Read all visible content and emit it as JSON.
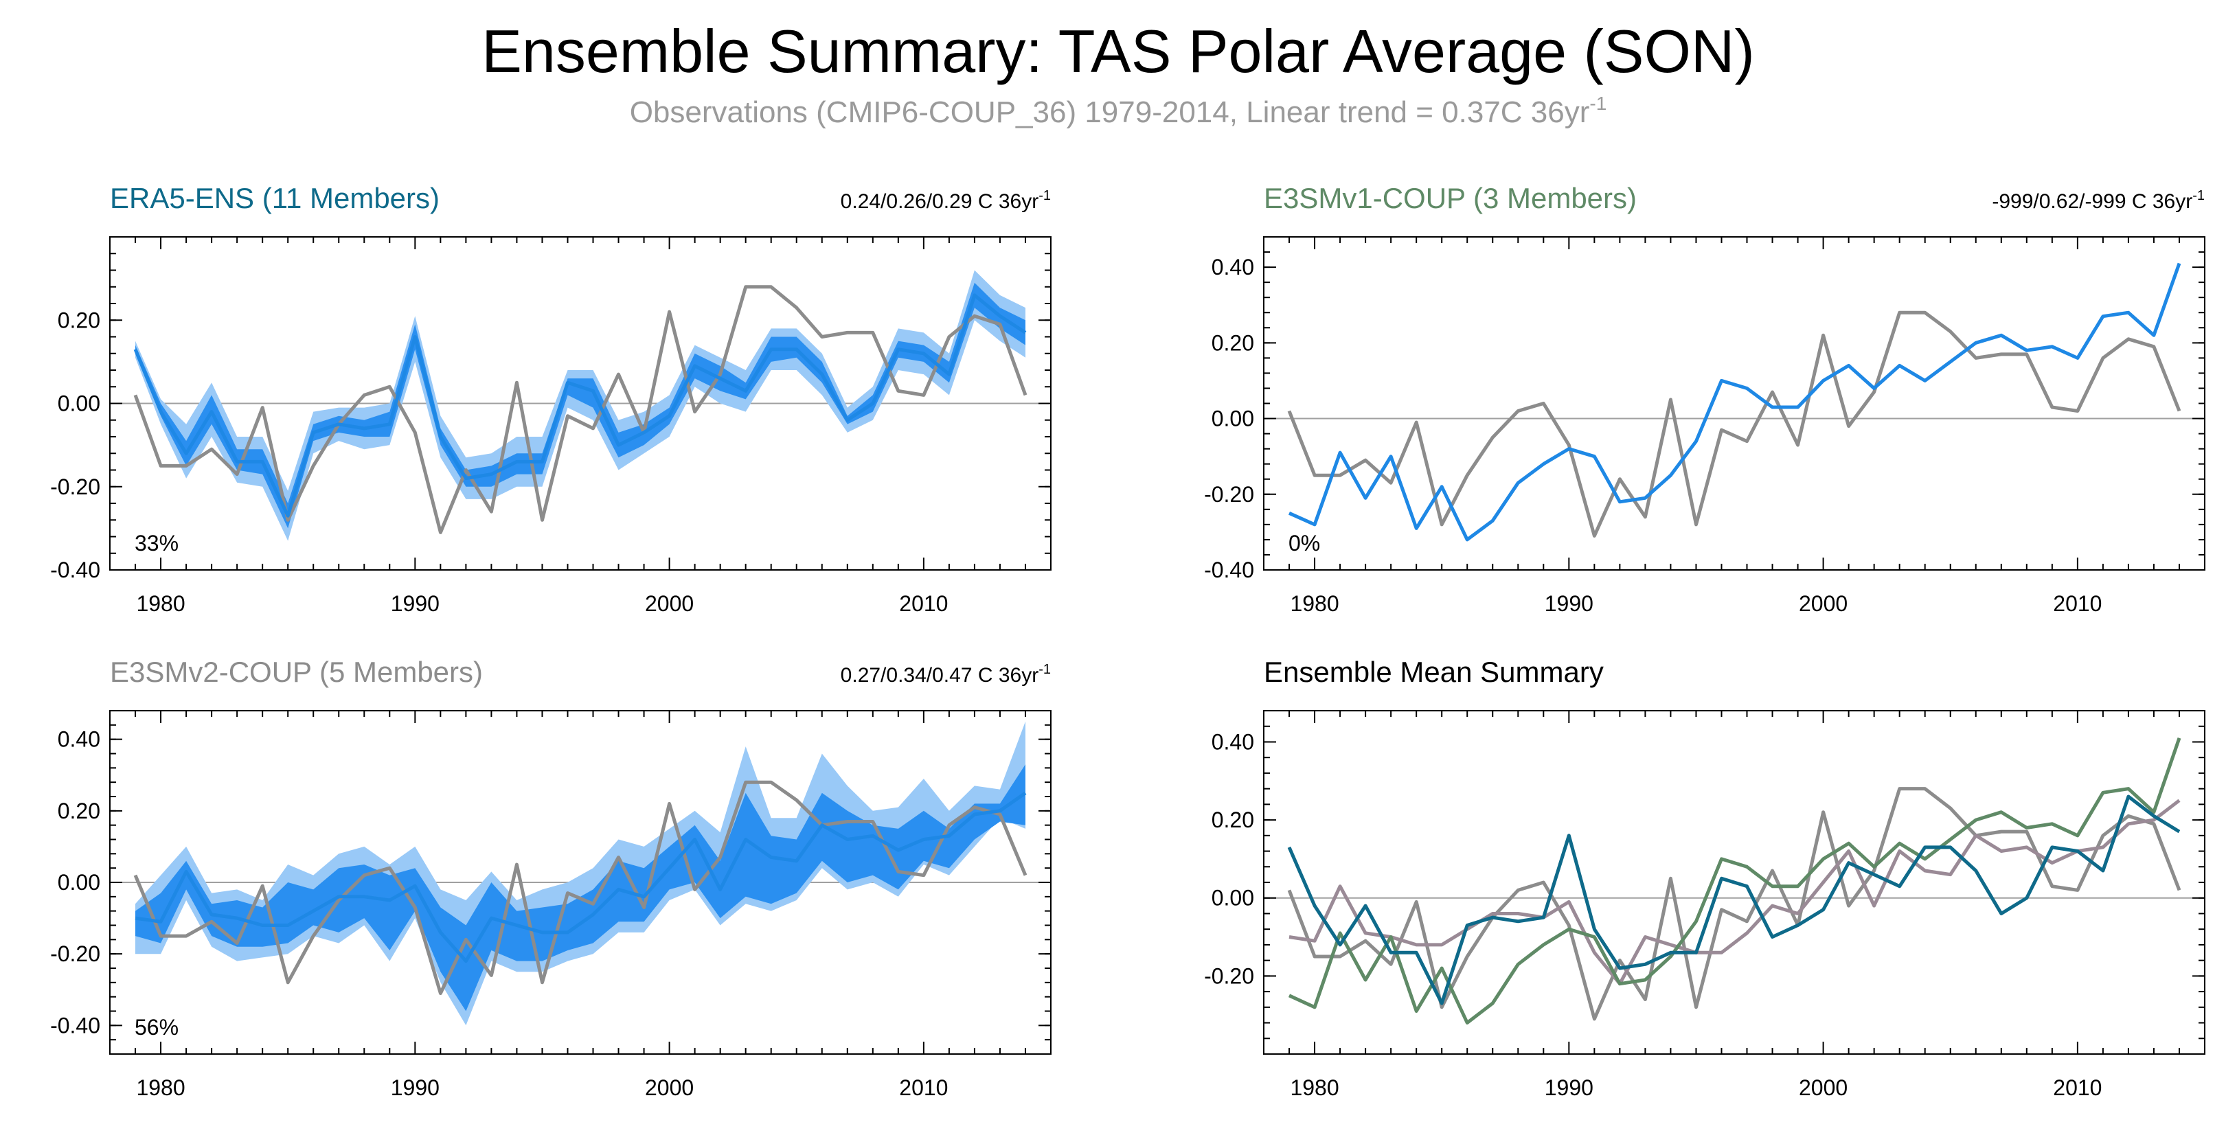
{
  "title": "Ensemble Summary: TAS Polar Average (SON)",
  "subtitle": "Observations (CMIP6-COUP_36) 1979-2014, Linear trend = 0.37C 36yr",
  "subtitle_sup": "-1",
  "colors": {
    "obs": "#8c8c8c",
    "mean_line": "#1e88e5",
    "band_outer": "#99c9f7",
    "band_inner": "#2a8ff0",
    "zero_line": "#a0a0a0",
    "era5": "#0e6a8a",
    "e3smv1": "#5f8a66",
    "e3smv2": "#8c8c8c",
    "e3smv2_mean": "#9a8a96"
  },
  "chart_data": [
    {
      "type": "line",
      "id": "era5",
      "title": "ERA5-ENS (11 Members)",
      "title_color": "#0e6a8a",
      "trend_text": "0.24/0.26/0.29 C 36yr",
      "trend_sup": "-1",
      "percent": "33%",
      "xlim": [
        1978,
        2015
      ],
      "ylim": [
        -0.4,
        0.4
      ],
      "xticks": [
        1980,
        1990,
        2000,
        2010
      ],
      "xtick_labels": [
        "1980",
        "1990",
        "2000",
        "2010"
      ],
      "yticks": [
        -0.4,
        -0.2,
        0.0,
        0.2
      ],
      "ytick_labels": [
        "-0.40",
        "-0.20",
        "0.00",
        "0.20"
      ],
      "x": [
        1979,
        1980,
        1981,
        1982,
        1983,
        1984,
        1985,
        1986,
        1987,
        1988,
        1989,
        1990,
        1991,
        1992,
        1993,
        1994,
        1995,
        1996,
        1997,
        1998,
        1999,
        2000,
        2001,
        2002,
        2003,
        2004,
        2005,
        2006,
        2007,
        2008,
        2009,
        2010,
        2011,
        2012,
        2013,
        2014
      ],
      "observations": [
        0.02,
        -0.15,
        -0.15,
        -0.11,
        -0.17,
        -0.01,
        -0.28,
        -0.15,
        -0.05,
        0.02,
        0.04,
        -0.07,
        -0.31,
        -0.16,
        -0.26,
        0.05,
        -0.28,
        -0.03,
        -0.06,
        0.07,
        -0.07,
        0.22,
        -0.02,
        0.07,
        0.28,
        0.28,
        0.23,
        0.16,
        0.17,
        0.17,
        0.03,
        0.02,
        0.16,
        0.21,
        0.19,
        0.02
      ],
      "mean": [
        0.13,
        -0.02,
        -0.12,
        -0.02,
        -0.14,
        -0.14,
        -0.27,
        -0.07,
        -0.05,
        -0.06,
        -0.05,
        0.16,
        -0.08,
        -0.18,
        -0.17,
        -0.14,
        -0.14,
        0.05,
        0.03,
        -0.1,
        -0.07,
        -0.03,
        0.09,
        0.06,
        0.03,
        0.13,
        0.13,
        0.07,
        -0.04,
        0.0,
        0.13,
        0.12,
        0.07,
        0.26,
        0.21,
        0.17
      ],
      "outer_lower": [
        0.11,
        -0.05,
        -0.18,
        -0.08,
        -0.19,
        -0.2,
        -0.33,
        -0.12,
        -0.09,
        -0.11,
        -0.1,
        0.1,
        -0.13,
        -0.23,
        -0.23,
        -0.2,
        -0.2,
        -0.01,
        -0.04,
        -0.16,
        -0.12,
        -0.08,
        0.04,
        0.0,
        -0.02,
        0.08,
        0.08,
        0.02,
        -0.07,
        -0.04,
        0.08,
        0.07,
        0.02,
        0.2,
        0.15,
        0.11
      ],
      "outer_upper": [
        0.15,
        0.01,
        -0.05,
        0.05,
        -0.08,
        -0.08,
        -0.21,
        -0.02,
        -0.01,
        -0.01,
        0.0,
        0.21,
        -0.03,
        -0.13,
        -0.12,
        -0.08,
        -0.08,
        0.08,
        0.08,
        -0.04,
        -0.02,
        0.02,
        0.14,
        0.11,
        0.08,
        0.18,
        0.18,
        0.12,
        -0.01,
        0.04,
        0.18,
        0.17,
        0.12,
        0.32,
        0.26,
        0.23
      ],
      "inner_lower": [
        0.12,
        -0.03,
        -0.15,
        -0.05,
        -0.16,
        -0.17,
        -0.3,
        -0.09,
        -0.07,
        -0.08,
        -0.08,
        0.13,
        -0.1,
        -0.2,
        -0.2,
        -0.17,
        -0.17,
        0.02,
        -0.01,
        -0.13,
        -0.1,
        -0.05,
        0.06,
        0.03,
        0.01,
        0.1,
        0.11,
        0.05,
        -0.05,
        -0.02,
        0.11,
        0.1,
        0.05,
        0.23,
        0.18,
        0.14
      ],
      "inner_upper": [
        0.14,
        0.0,
        -0.09,
        0.02,
        -0.11,
        -0.11,
        -0.24,
        -0.05,
        -0.03,
        -0.04,
        -0.02,
        0.19,
        -0.06,
        -0.16,
        -0.15,
        -0.12,
        -0.12,
        0.06,
        0.06,
        -0.07,
        -0.05,
        -0.01,
        0.12,
        0.09,
        0.05,
        0.16,
        0.16,
        0.1,
        -0.03,
        0.02,
        0.15,
        0.14,
        0.1,
        0.29,
        0.23,
        0.2
      ]
    },
    {
      "type": "line",
      "id": "e3smv1",
      "title": "E3SMv1-COUP (3 Members)",
      "title_color": "#5f8a66",
      "trend_text": "-999/0.62/-999 C 36yr",
      "trend_sup": "-1",
      "percent": "0%",
      "xlim": [
        1978,
        2015
      ],
      "ylim": [
        -0.4,
        0.48
      ],
      "xticks": [
        1980,
        1990,
        2000,
        2010
      ],
      "xtick_labels": [
        "1980",
        "1990",
        "2000",
        "2010"
      ],
      "yticks": [
        -0.4,
        -0.2,
        0.0,
        0.2,
        0.4
      ],
      "ytick_labels": [
        "-0.40",
        "-0.20",
        "0.00",
        "0.20",
        "0.40"
      ],
      "x": [
        1979,
        1980,
        1981,
        1982,
        1983,
        1984,
        1985,
        1986,
        1987,
        1988,
        1989,
        1990,
        1991,
        1992,
        1993,
        1994,
        1995,
        1996,
        1997,
        1998,
        1999,
        2000,
        2001,
        2002,
        2003,
        2004,
        2005,
        2006,
        2007,
        2008,
        2009,
        2010,
        2011,
        2012,
        2013,
        2014
      ],
      "observations": [
        0.02,
        -0.15,
        -0.15,
        -0.11,
        -0.17,
        -0.01,
        -0.28,
        -0.15,
        -0.05,
        0.02,
        0.04,
        -0.07,
        -0.31,
        -0.16,
        -0.26,
        0.05,
        -0.28,
        -0.03,
        -0.06,
        0.07,
        -0.07,
        0.22,
        -0.02,
        0.07,
        0.28,
        0.28,
        0.23,
        0.16,
        0.17,
        0.17,
        0.03,
        0.02,
        0.16,
        0.21,
        0.19,
        0.02
      ],
      "mean": [
        -0.25,
        -0.28,
        -0.09,
        -0.21,
        -0.1,
        -0.29,
        -0.18,
        -0.32,
        -0.27,
        -0.17,
        -0.12,
        -0.08,
        -0.1,
        -0.22,
        -0.21,
        -0.15,
        -0.06,
        0.1,
        0.08,
        0.03,
        0.03,
        0.1,
        0.14,
        0.08,
        0.14,
        0.1,
        0.15,
        0.2,
        0.22,
        0.18,
        0.19,
        0.16,
        0.27,
        0.28,
        0.22,
        0.41
      ]
    },
    {
      "type": "line",
      "id": "e3smv2",
      "title": "E3SMv2-COUP (5 Members)",
      "title_color": "#8c8c8c",
      "trend_text": "0.27/0.34/0.47 C 36yr",
      "trend_sup": "-1",
      "percent": "56%",
      "xlim": [
        1978,
        2015
      ],
      "ylim": [
        -0.48,
        0.48
      ],
      "xticks": [
        1980,
        1990,
        2000,
        2010
      ],
      "xtick_labels": [
        "1980",
        "1990",
        "2000",
        "2010"
      ],
      "yticks": [
        -0.4,
        -0.2,
        0.0,
        0.2,
        0.4
      ],
      "ytick_labels": [
        "-0.40",
        "-0.20",
        "0.00",
        "0.20",
        "0.40"
      ],
      "x": [
        1979,
        1980,
        1981,
        1982,
        1983,
        1984,
        1985,
        1986,
        1987,
        1988,
        1989,
        1990,
        1991,
        1992,
        1993,
        1994,
        1995,
        1996,
        1997,
        1998,
        1999,
        2000,
        2001,
        2002,
        2003,
        2004,
        2005,
        2006,
        2007,
        2008,
        2009,
        2010,
        2011,
        2012,
        2013,
        2014
      ],
      "observations": [
        0.02,
        -0.15,
        -0.15,
        -0.11,
        -0.17,
        -0.01,
        -0.28,
        -0.15,
        -0.05,
        0.02,
        0.04,
        -0.07,
        -0.31,
        -0.16,
        -0.26,
        0.05,
        -0.28,
        -0.03,
        -0.06,
        0.07,
        -0.07,
        0.22,
        -0.02,
        0.07,
        0.28,
        0.28,
        0.23,
        0.16,
        0.17,
        0.17,
        0.03,
        0.02,
        0.16,
        0.21,
        0.19,
        0.02
      ],
      "mean": [
        -0.1,
        -0.11,
        0.03,
        -0.09,
        -0.1,
        -0.12,
        -0.12,
        -0.08,
        -0.04,
        -0.04,
        -0.05,
        -0.01,
        -0.14,
        -0.22,
        -0.1,
        -0.12,
        -0.14,
        -0.14,
        -0.09,
        -0.02,
        -0.04,
        0.04,
        0.12,
        -0.02,
        0.12,
        0.07,
        0.06,
        0.16,
        0.12,
        0.13,
        0.09,
        0.12,
        0.13,
        0.19,
        0.2,
        0.25
      ],
      "outer_lower": [
        -0.2,
        -0.2,
        -0.05,
        -0.18,
        -0.22,
        -0.21,
        -0.2,
        -0.15,
        -0.17,
        -0.12,
        -0.22,
        -0.1,
        -0.28,
        -0.4,
        -0.22,
        -0.25,
        -0.25,
        -0.22,
        -0.2,
        -0.14,
        -0.14,
        -0.05,
        -0.02,
        -0.12,
        -0.06,
        -0.08,
        -0.05,
        0.04,
        -0.02,
        0.0,
        -0.04,
        0.05,
        0.02,
        0.1,
        0.18,
        0.15
      ],
      "outer_upper": [
        -0.06,
        0.02,
        0.1,
        -0.03,
        -0.02,
        -0.05,
        0.05,
        0.02,
        0.08,
        0.1,
        0.05,
        0.1,
        -0.02,
        -0.05,
        0.03,
        -0.05,
        -0.02,
        0.0,
        0.04,
        0.12,
        0.1,
        0.15,
        0.2,
        0.14,
        0.38,
        0.18,
        0.18,
        0.36,
        0.27,
        0.2,
        0.21,
        0.29,
        0.2,
        0.27,
        0.26,
        0.45
      ],
      "inner_lower": [
        -0.15,
        -0.17,
        -0.02,
        -0.15,
        -0.18,
        -0.18,
        -0.17,
        -0.12,
        -0.14,
        -0.1,
        -0.19,
        -0.08,
        -0.25,
        -0.36,
        -0.19,
        -0.22,
        -0.22,
        -0.19,
        -0.17,
        -0.11,
        -0.11,
        -0.02,
        0.0,
        -0.1,
        -0.04,
        -0.06,
        -0.03,
        0.06,
        0.0,
        0.02,
        -0.02,
        0.06,
        0.04,
        0.12,
        0.17,
        0.16
      ],
      "inner_upper": [
        -0.08,
        -0.03,
        0.06,
        -0.06,
        -0.05,
        -0.07,
        0.0,
        -0.02,
        0.04,
        0.05,
        0.02,
        0.04,
        -0.07,
        -0.12,
        0.0,
        -0.08,
        -0.07,
        -0.06,
        -0.02,
        0.06,
        0.04,
        0.1,
        0.16,
        0.06,
        0.25,
        0.13,
        0.12,
        0.25,
        0.2,
        0.16,
        0.15,
        0.2,
        0.15,
        0.22,
        0.22,
        0.33
      ]
    },
    {
      "type": "line",
      "id": "summary",
      "title": "Ensemble Mean Summary",
      "title_color": "#000000",
      "xlim": [
        1978,
        2015
      ],
      "ylim": [
        -0.4,
        0.48
      ],
      "xticks": [
        1980,
        1990,
        2000,
        2010
      ],
      "xtick_labels": [
        "1980",
        "1990",
        "2000",
        "2010"
      ],
      "yticks": [
        -0.2,
        0.0,
        0.2,
        0.4
      ],
      "ytick_labels": [
        "-0.20",
        "0.00",
        "0.20",
        "0.40"
      ],
      "x": [
        1979,
        1980,
        1981,
        1982,
        1983,
        1984,
        1985,
        1986,
        1987,
        1988,
        1989,
        1990,
        1991,
        1992,
        1993,
        1994,
        1995,
        1996,
        1997,
        1998,
        1999,
        2000,
        2001,
        2002,
        2003,
        2004,
        2005,
        2006,
        2007,
        2008,
        2009,
        2010,
        2011,
        2012,
        2013,
        2014
      ],
      "lines": [
        {
          "color_key": "obs",
          "values": [
            0.02,
            -0.15,
            -0.15,
            -0.11,
            -0.17,
            -0.01,
            -0.28,
            -0.15,
            -0.05,
            0.02,
            0.04,
            -0.07,
            -0.31,
            -0.16,
            -0.26,
            0.05,
            -0.28,
            -0.03,
            -0.06,
            0.07,
            -0.07,
            0.22,
            -0.02,
            0.07,
            0.28,
            0.28,
            0.23,
            0.16,
            0.17,
            0.17,
            0.03,
            0.02,
            0.16,
            0.21,
            0.19,
            0.02
          ]
        },
        {
          "color_key": "e3smv2_mean",
          "values": [
            -0.1,
            -0.11,
            0.03,
            -0.09,
            -0.1,
            -0.12,
            -0.12,
            -0.08,
            -0.04,
            -0.04,
            -0.05,
            -0.01,
            -0.14,
            -0.22,
            -0.1,
            -0.12,
            -0.14,
            -0.14,
            -0.09,
            -0.02,
            -0.04,
            0.04,
            0.12,
            -0.02,
            0.12,
            0.07,
            0.06,
            0.16,
            0.12,
            0.13,
            0.09,
            0.12,
            0.13,
            0.19,
            0.2,
            0.25
          ]
        },
        {
          "color_key": "e3smv1",
          "values": [
            -0.25,
            -0.28,
            -0.09,
            -0.21,
            -0.1,
            -0.29,
            -0.18,
            -0.32,
            -0.27,
            -0.17,
            -0.12,
            -0.08,
            -0.1,
            -0.22,
            -0.21,
            -0.15,
            -0.06,
            0.1,
            0.08,
            0.03,
            0.03,
            0.1,
            0.14,
            0.08,
            0.14,
            0.1,
            0.15,
            0.2,
            0.22,
            0.18,
            0.19,
            0.16,
            0.27,
            0.28,
            0.22,
            0.41
          ]
        },
        {
          "color_key": "era5",
          "values": [
            0.13,
            -0.02,
            -0.12,
            -0.02,
            -0.14,
            -0.14,
            -0.27,
            -0.07,
            -0.05,
            -0.06,
            -0.05,
            0.16,
            -0.08,
            -0.18,
            -0.17,
            -0.14,
            -0.14,
            0.05,
            0.03,
            -0.1,
            -0.07,
            -0.03,
            0.09,
            0.06,
            0.03,
            0.13,
            0.13,
            0.07,
            -0.04,
            0.0,
            0.13,
            0.12,
            0.07,
            0.26,
            0.21,
            0.17
          ]
        }
      ]
    }
  ]
}
